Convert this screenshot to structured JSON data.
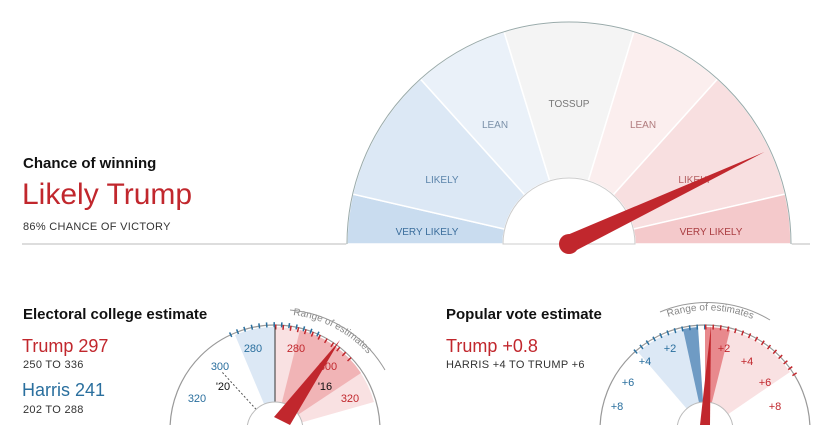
{
  "main_gauge": {
    "heading": "Chance of winning",
    "status": "Likely Trump",
    "subtext": "86% CHANCE OF VICTORY",
    "probability": 0.86,
    "segments": {
      "very_likely_left": "VERY LIKELY",
      "likely_left": "LIKELY",
      "lean_left": "LEAN",
      "tossup": "TOSSUP",
      "lean_right": "LEAN",
      "likely_right": "LIKELY",
      "very_likely_right": "VERY LIKELY"
    }
  },
  "electoral": {
    "heading": "Electoral college estimate",
    "trump_label": "Trump 297",
    "trump_range": "250 TO 336",
    "harris_label": "Harris 241",
    "harris_range": "202 TO 288",
    "range_label": "Range of estimates",
    "ticks": {
      "t280_left": "280",
      "t300_left": "300",
      "t320_left": "320",
      "t280_right": "280",
      "t300_right": "300",
      "t320_right": "320"
    },
    "markers": {
      "y20": "'20",
      "y16": "'16"
    }
  },
  "popular": {
    "heading": "Popular vote estimate",
    "trump_label": "Trump +0.8",
    "range_text": "HARRIS +4 TO TRUMP +6",
    "range_label": "Range of estimates",
    "ticks": {
      "l2": "+2",
      "l4": "+4",
      "l6": "+6",
      "l8": "+8",
      "r2": "+2",
      "r4": "+4",
      "r6": "+6",
      "r8": "+8"
    }
  },
  "colors": {
    "red": "#c1272d",
    "blue": "#2a6f9e",
    "very_likely_blue": "#c9dcef",
    "likely_blue": "#dce8f5",
    "lean_blue": "#eaf1f9",
    "tossup": "#f4f4f4",
    "lean_red": "#fbeeee",
    "likely_red": "#f8dfe0",
    "very_likely_red": "#f4c9cb"
  }
}
